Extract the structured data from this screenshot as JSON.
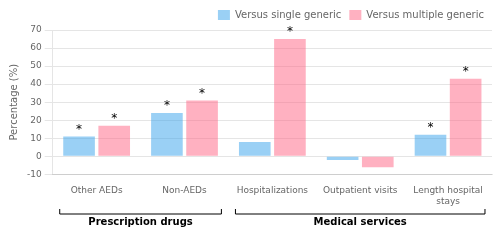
{
  "chart_data": {
    "type": "bar",
    "categories": [
      "Other AEDs",
      "Non-AEDs",
      "Hospitalizations",
      "Outpatient visits",
      "Length hospital\nstays"
    ],
    "series": [
      {
        "name": "Versus single generic",
        "values": [
          11,
          24,
          8,
          -2,
          12
        ]
      },
      {
        "name": "Versus multiple generic",
        "values": [
          17,
          31,
          65,
          -6,
          43
        ]
      }
    ],
    "ylabel": "Percentage (%)",
    "ylim": [
      -10,
      70
    ],
    "yticks": [
      -10,
      0,
      10,
      20,
      30,
      40,
      50,
      60,
      70
    ],
    "grid": true,
    "legend": "upper right",
    "annotations": [
      {
        "text": "*",
        "series": "Versus single generic",
        "category": "Other AEDs"
      },
      {
        "text": "*",
        "series": "Versus single generic",
        "category": "Non-AEDs"
      },
      {
        "text": "*",
        "series": "Versus single generic",
        "category": "Length hospital\nstays"
      },
      {
        "text": "*",
        "series": "Versus multiple generic",
        "category": "Other AEDs"
      },
      {
        "text": "*",
        "series": "Versus multiple generic",
        "category": "Non-AEDs"
      },
      {
        "text": "*",
        "series": "Versus multiple generic",
        "category": "Hospitalizations"
      },
      {
        "text": "*",
        "series": "Versus multiple generic",
        "category": "Length hospital\nstays"
      }
    ],
    "groups": [
      {
        "label": "Prescription drugs",
        "categories": [
          "Other AEDs",
          "Non-AEDs"
        ]
      },
      {
        "label": "Medical services",
        "categories": [
          "Hospitalizations",
          "Outpatient visits",
          "Length hospital\nstays"
        ]
      }
    ]
  }
}
